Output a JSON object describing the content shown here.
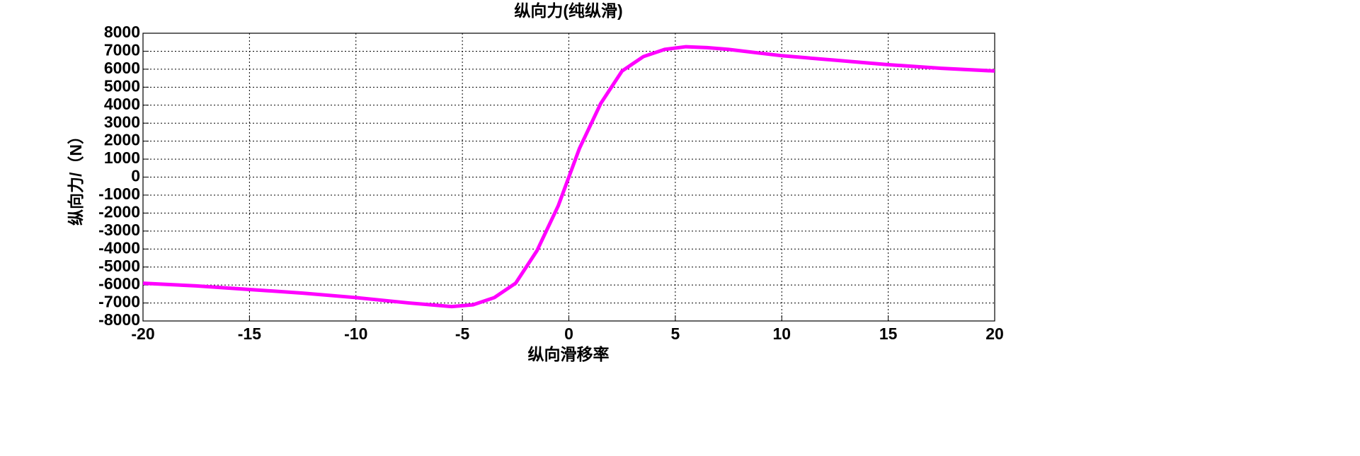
{
  "chart_data": {
    "type": "line",
    "title": "纵向力(纯纵滑)",
    "x_label": "纵向滑移率",
    "y_label": "纵向力/（N）",
    "x": [
      -20,
      -17.5,
      -15,
      -12.5,
      -10,
      -7.5,
      -6,
      -5.5,
      -4.5,
      -3.5,
      -2.5,
      -1.5,
      -0.5,
      0,
      0.5,
      1.5,
      2.5,
      3.5,
      4.5,
      5.5,
      6.5,
      7.5,
      10,
      12.5,
      15,
      17.5,
      20
    ],
    "series": [
      {
        "name": "纵向力",
        "color": "#ff00ff",
        "values": [
          -5900,
          -6050,
          -6250,
          -6450,
          -6700,
          -7000,
          -7150,
          -7200,
          -7100,
          -6700,
          -5900,
          -4100,
          -1600,
          0,
          1600,
          4100,
          5900,
          6700,
          7100,
          7250,
          7200,
          7100,
          6750,
          6500,
          6250,
          6050,
          5900
        ]
      }
    ],
    "xlim": [
      -20,
      20
    ],
    "xticks": [
      -20,
      -15,
      -10,
      -5,
      0,
      5,
      10,
      15,
      20
    ],
    "ylim": [
      -8000,
      8000
    ],
    "yticks": [
      -8000,
      -7000,
      -6000,
      -5000,
      -4000,
      -3000,
      -2000,
      -1000,
      0,
      1000,
      2000,
      3000,
      4000,
      5000,
      6000,
      7000,
      8000
    ],
    "grid": true
  }
}
